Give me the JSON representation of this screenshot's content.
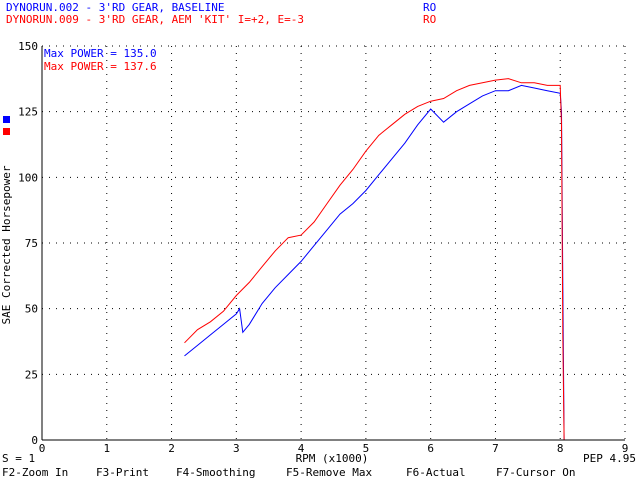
{
  "header": {
    "runs": [
      {
        "label": "DYNORUN.002 - 3'RD GEAR, BASELINE",
        "tag": "RO",
        "color": "#0000ff"
      },
      {
        "label": "DYNORUN.009 - 3'RD GEAR, AEM 'KIT' I=+2, E=-3",
        "tag": "RO",
        "color": "#ff0000"
      }
    ]
  },
  "status": {
    "smoothing": "S = 1",
    "pep": "PEP 4.95"
  },
  "function_keys": [
    {
      "label": "F2-Zoom In"
    },
    {
      "label": "F3-Print"
    },
    {
      "label": "F4-Smoothing"
    },
    {
      "label": "F5-Remove Max"
    },
    {
      "label": "F6-Actual"
    },
    {
      "label": "F7-Cursor On"
    }
  ],
  "chart_data": {
    "type": "line",
    "title": "",
    "xlabel": "RPM (x1000)",
    "ylabel": "SAE Corrected Horsepower",
    "xlim": [
      0,
      9
    ],
    "ylim": [
      0,
      150
    ],
    "xticks": [
      0,
      1,
      2,
      3,
      4,
      5,
      6,
      7,
      8,
      9
    ],
    "yticks": [
      0,
      25,
      50,
      75,
      100,
      125,
      150
    ],
    "grid": true,
    "legend_placement": "top-left",
    "annotations": [
      {
        "text": "Max POWER = 135.0",
        "color": "#0000ff"
      },
      {
        "text": "Max POWER = 137.6",
        "color": "#ff0000"
      }
    ],
    "series": [
      {
        "color": "#0000ff",
        "x": [
          2.2,
          2.4,
          2.6,
          2.8,
          3.0,
          3.05,
          3.1,
          3.2,
          3.4,
          3.6,
          3.8,
          4.0,
          4.2,
          4.4,
          4.6,
          4.8,
          5.0,
          5.2,
          5.4,
          5.6,
          5.8,
          6.0,
          6.2,
          6.4,
          6.6,
          6.8,
          7.0,
          7.2,
          7.4,
          7.6,
          7.8,
          8.0,
          8.02,
          8.04,
          8.06
        ],
        "y": [
          32,
          36,
          40,
          44,
          48,
          50,
          41,
          44,
          52,
          58,
          63,
          68,
          74,
          80,
          86,
          90,
          95,
          101,
          107,
          113,
          120,
          126,
          121,
          125,
          128,
          131,
          133,
          133,
          135,
          134,
          133,
          132,
          125,
          60,
          0
        ]
      },
      {
        "color": "#ff0000",
        "x": [
          2.2,
          2.4,
          2.6,
          2.8,
          3.0,
          3.2,
          3.4,
          3.6,
          3.8,
          4.0,
          4.2,
          4.4,
          4.6,
          4.8,
          5.0,
          5.2,
          5.4,
          5.6,
          5.8,
          6.0,
          6.2,
          6.4,
          6.6,
          6.8,
          7.0,
          7.2,
          7.4,
          7.6,
          7.8,
          8.0,
          8.02,
          8.04,
          8.06
        ],
        "y": [
          37,
          42,
          45,
          49,
          55,
          60,
          66,
          72,
          77,
          78,
          83,
          90,
          97,
          103,
          110,
          116,
          120,
          124,
          127,
          129,
          130,
          133,
          135,
          136,
          137,
          137.6,
          136,
          136,
          135,
          135,
          120,
          40,
          0
        ]
      }
    ]
  }
}
